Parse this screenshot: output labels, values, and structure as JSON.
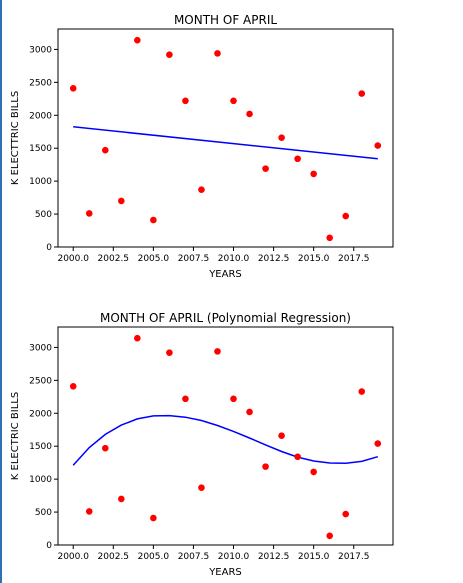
{
  "chart_data": [
    {
      "type": "scatter",
      "title": "MONTH OF APRIL",
      "xlabel": "YEARS",
      "ylabel": "K ELECTTRIC BILLS",
      "xlim": [
        1999.05,
        2019.95
      ],
      "ylim": [
        0,
        3310
      ],
      "xticks": [
        2000.0,
        2002.5,
        2005.0,
        2007.5,
        2010.0,
        2012.5,
        2015.0,
        2017.5
      ],
      "xtick_labels": [
        "2000.0",
        "2002.5",
        "2005.0",
        "2007.5",
        "2010.0",
        "2012.5",
        "2015.0",
        "2017.5"
      ],
      "yticks": [
        0,
        500,
        1000,
        1500,
        2000,
        2500,
        3000
      ],
      "ytick_labels": [
        "0",
        "500",
        "1000",
        "1500",
        "2000",
        "2500",
        "3000"
      ],
      "grid": false,
      "series": [
        {
          "kind": "points",
          "color": "#ff0000",
          "x": [
            2000,
            2001,
            2002,
            2003,
            2004,
            2005,
            2006,
            2007,
            2008,
            2009,
            2010,
            2011,
            2012,
            2013,
            2014,
            2015,
            2016,
            2017,
            2018,
            2019
          ],
          "y": [
            2410,
            510,
            1470,
            700,
            3140,
            410,
            2920,
            2220,
            870,
            2940,
            2220,
            2020,
            1190,
            1660,
            1340,
            1110,
            140,
            470,
            2330,
            1540
          ]
        },
        {
          "kind": "line",
          "color": "#0000ff",
          "x": [
            2000,
            2019
          ],
          "y": [
            1825,
            1340
          ]
        }
      ]
    },
    {
      "type": "scatter",
      "title": "MONTH OF APRIL (Polynomial Regression)",
      "xlabel": "YEARS",
      "ylabel": "K ELECTRIC BILLS",
      "xlim": [
        1999.05,
        2019.95
      ],
      "ylim": [
        0,
        3310
      ],
      "xticks": [
        2000.0,
        2002.5,
        2005.0,
        2007.5,
        2010.0,
        2012.5,
        2015.0,
        2017.5
      ],
      "xtick_labels": [
        "2000.0",
        "2002.5",
        "2005.0",
        "2007.5",
        "2010.0",
        "2012.5",
        "2015.0",
        "2017.5"
      ],
      "yticks": [
        0,
        500,
        1000,
        1500,
        2000,
        2500,
        3000
      ],
      "ytick_labels": [
        "0",
        "500",
        "1000",
        "1500",
        "2000",
        "2500",
        "3000"
      ],
      "grid": false,
      "series": [
        {
          "kind": "points",
          "color": "#ff0000",
          "x": [
            2000,
            2001,
            2002,
            2003,
            2004,
            2005,
            2006,
            2007,
            2008,
            2009,
            2010,
            2011,
            2012,
            2013,
            2014,
            2015,
            2016,
            2017,
            2018,
            2019
          ],
          "y": [
            2410,
            510,
            1470,
            700,
            3140,
            410,
            2920,
            2220,
            870,
            2940,
            2220,
            2020,
            1190,
            1660,
            1340,
            1110,
            140,
            470,
            2330,
            1540
          ]
        },
        {
          "kind": "line",
          "color": "#0000ff",
          "x": [
            2000,
            2001,
            2002,
            2003,
            2004,
            2005,
            2006,
            2007,
            2008,
            2009,
            2010,
            2011,
            2012,
            2013,
            2014,
            2015,
            2016,
            2017,
            2018,
            2019
          ],
          "y": [
            1210,
            1480,
            1680,
            1820,
            1915,
            1960,
            1965,
            1940,
            1890,
            1815,
            1725,
            1625,
            1520,
            1420,
            1335,
            1275,
            1245,
            1240,
            1270,
            1340
          ]
        }
      ]
    }
  ]
}
